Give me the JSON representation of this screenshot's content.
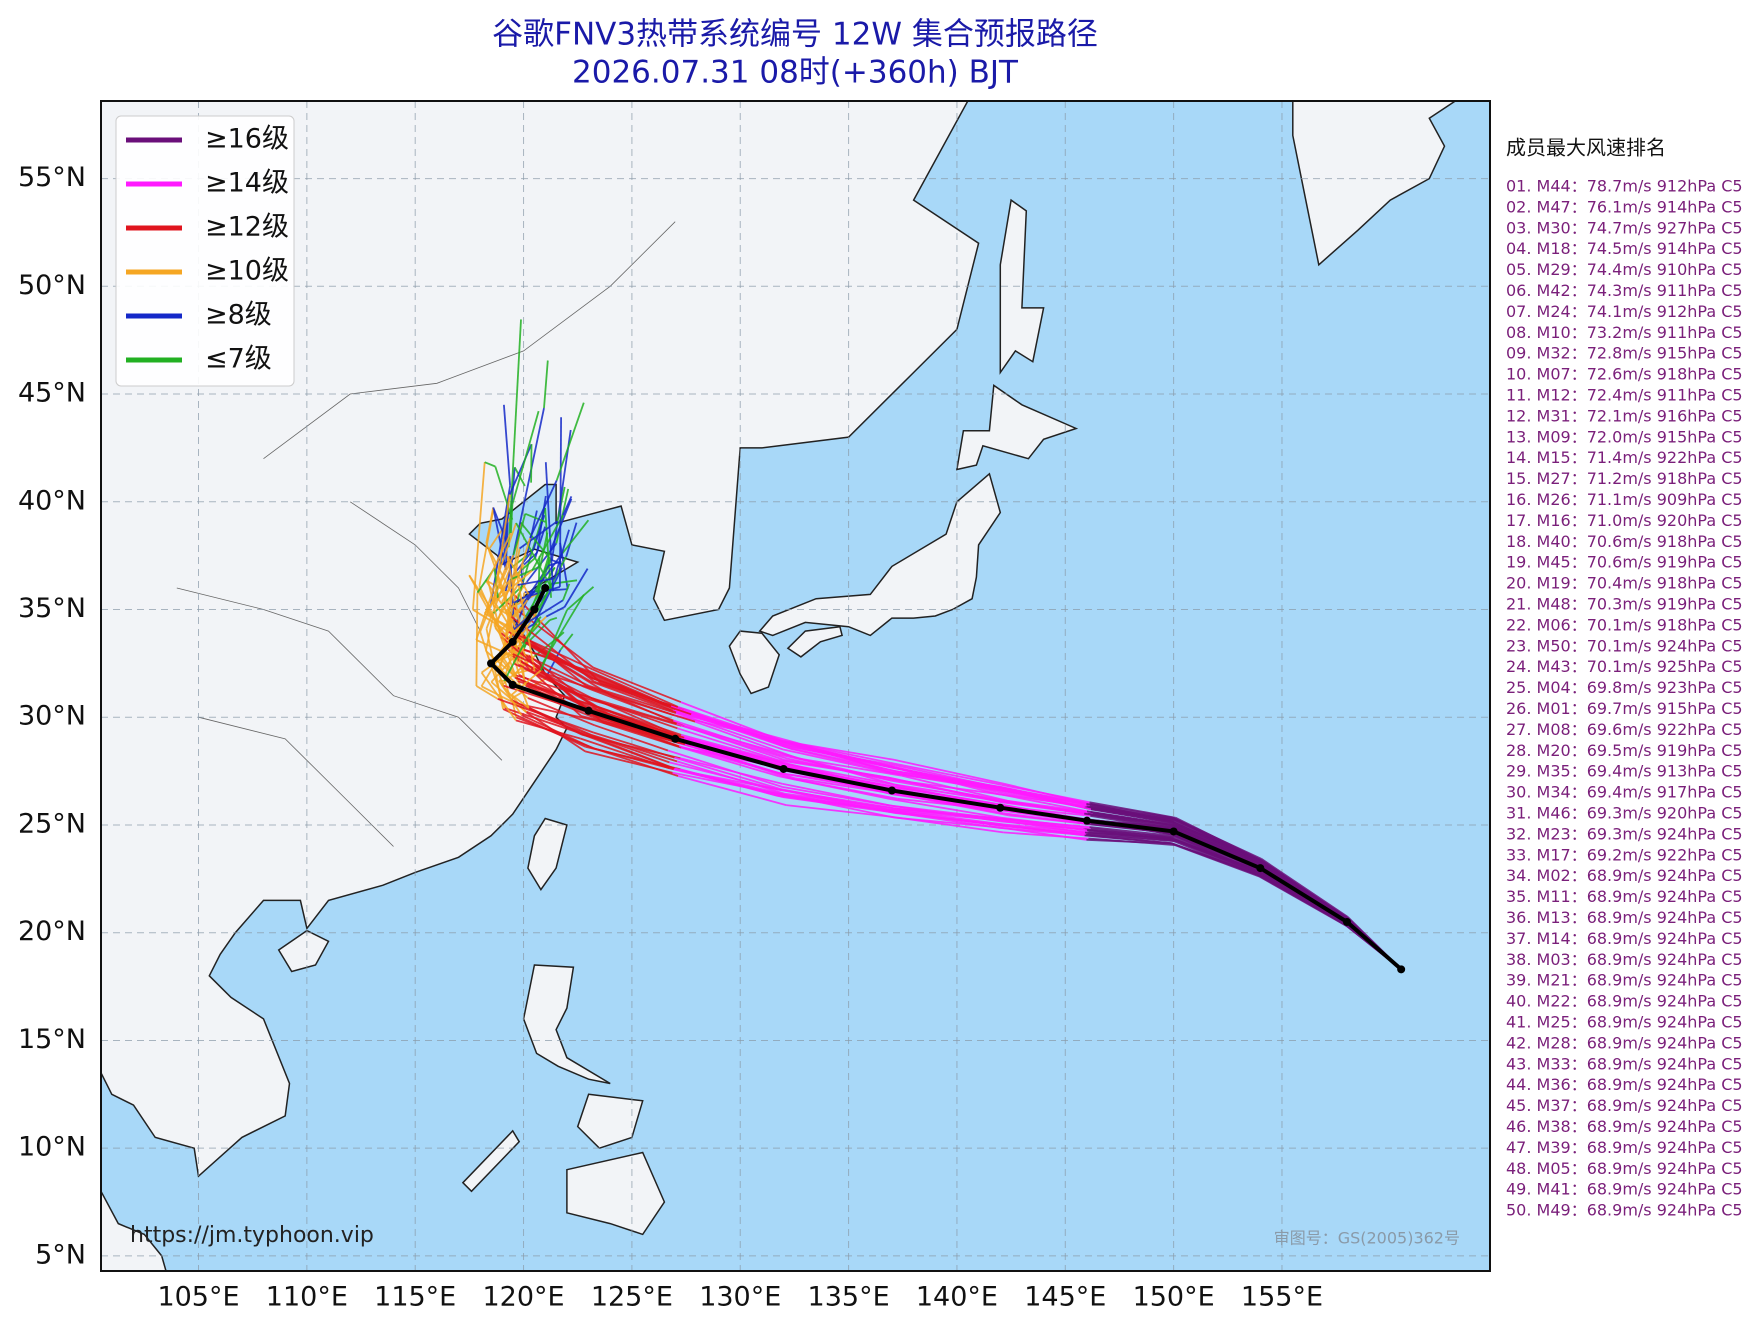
{
  "header": {
    "title": "谷歌FNV3热带系统编号 12W 集合预报路径",
    "subtitle": "2026.07.31 08时(+360h) BJT"
  },
  "map": {
    "xlim": [
      100.5,
      164.6
    ],
    "ylim": [
      4.3,
      58.6
    ],
    "xticks": [
      {
        "value": 105,
        "label": "105°E"
      },
      {
        "value": 110,
        "label": "110°E"
      },
      {
        "value": 115,
        "label": "115°E"
      },
      {
        "value": 120,
        "label": "120°E"
      },
      {
        "value": 125,
        "label": "125°E"
      },
      {
        "value": 130,
        "label": "130°E"
      },
      {
        "value": 135,
        "label": "135°E"
      },
      {
        "value": 140,
        "label": "140°E"
      },
      {
        "value": 145,
        "label": "145°E"
      },
      {
        "value": 150,
        "label": "150°E"
      },
      {
        "value": 155,
        "label": "155°E"
      }
    ],
    "yticks": [
      {
        "value": 5,
        "label": "5°N"
      },
      {
        "value": 10,
        "label": "10°N"
      },
      {
        "value": 15,
        "label": "15°N"
      },
      {
        "value": 20,
        "label": "20°N"
      },
      {
        "value": 25,
        "label": "25°N"
      },
      {
        "value": 30,
        "label": "30°N"
      },
      {
        "value": 35,
        "label": "35°N"
      },
      {
        "value": 40,
        "label": "40°N"
      },
      {
        "value": 45,
        "label": "45°N"
      },
      {
        "value": 50,
        "label": "50°N"
      },
      {
        "value": 55,
        "label": "55°N"
      }
    ],
    "grid": true,
    "legend": [
      {
        "name": "≥16级",
        "color": "#6a0f7a"
      },
      {
        "name": "≥14级",
        "color": "#ff1aff"
      },
      {
        "name": "≥12级",
        "color": "#e0141e"
      },
      {
        "name": "≥10级",
        "color": "#f5a623"
      },
      {
        "name": "≥8级",
        "color": "#1428c8"
      },
      {
        "name": "≤7级",
        "color": "#22b022"
      }
    ],
    "source": "https://jm.typhoon.vip",
    "approval": "审图号：GS(2005)362号"
  },
  "ranking": {
    "title": "成员最大风速排名",
    "items": [
      "01. M44：78.7m/s 912hPa C5",
      "02. M47：76.1m/s 914hPa C5",
      "03. M30：74.7m/s 927hPa C5",
      "04. M18：74.5m/s 914hPa C5",
      "05. M29：74.4m/s 910hPa C5",
      "06. M42：74.3m/s 911hPa C5",
      "07. M24：74.1m/s 912hPa C5",
      "08. M10：73.2m/s 911hPa C5",
      "09. M32：72.8m/s 915hPa C5",
      "10. M07：72.6m/s 918hPa C5",
      "11. M12：72.4m/s 911hPa C5",
      "12. M31：72.1m/s 916hPa C5",
      "13. M09：72.0m/s 915hPa C5",
      "14. M15：71.4m/s 922hPa C5",
      "15. M27：71.2m/s 918hPa C5",
      "16. M26：71.1m/s 909hPa C5",
      "17. M16：71.0m/s 920hPa C5",
      "18. M40：70.6m/s 918hPa C5",
      "19. M45：70.6m/s 919hPa C5",
      "20. M19：70.4m/s 918hPa C5",
      "21. M48：70.3m/s 919hPa C5",
      "22. M06：70.1m/s 918hPa C5",
      "23. M50：70.1m/s 924hPa C5",
      "24. M43：70.1m/s 925hPa C5",
      "25. M04：69.8m/s 923hPa C5",
      "26. M01：69.7m/s 915hPa C5",
      "27. M08：69.6m/s 922hPa C5",
      "28. M20：69.5m/s 919hPa C5",
      "29. M35：69.4m/s 913hPa C5",
      "30. M34：69.4m/s 917hPa C5",
      "31. M46：69.3m/s 920hPa C5",
      "32. M23：69.3m/s 924hPa C5",
      "33. M17：69.2m/s 922hPa C5",
      "34. M02：68.9m/s 924hPa C5",
      "35. M11：68.9m/s 924hPa C5",
      "36. M13：68.9m/s 924hPa C5",
      "37. M14：68.9m/s 924hPa C5",
      "38. M03：68.9m/s 924hPa C5",
      "39. M21：68.9m/s 924hPa C5",
      "40. M22：68.9m/s 924hPa C5",
      "41. M25：68.9m/s 924hPa C5",
      "42. M28：68.9m/s 924hPa C5",
      "43. M33：68.9m/s 924hPa C5",
      "44. M36：68.9m/s 924hPa C5",
      "45. M37：68.9m/s 924hPa C5",
      "46. M38：68.9m/s 924hPa C5",
      "47. M39：68.9m/s 924hPa C5",
      "48. M05：68.9m/s 924hPa C5",
      "49. M41：68.9m/s 924hPa C5",
      "50. M49：68.9m/s 924hPa C5"
    ]
  }
}
